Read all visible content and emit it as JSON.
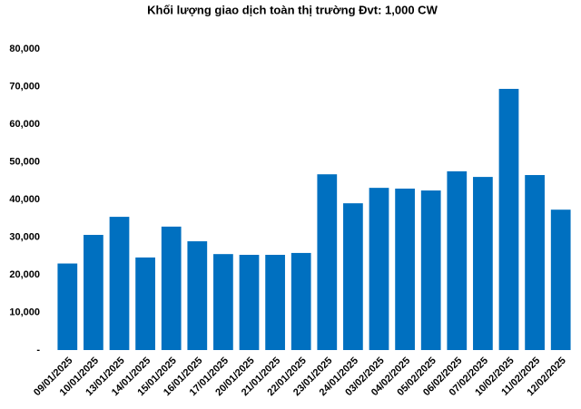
{
  "chart_data": {
    "type": "bar",
    "title": "Khối lượng giao dịch toàn thị trường Đvt: 1,000 CW",
    "categories": [
      "09/01/2025",
      "10/01/2025",
      "13/01/2025",
      "14/01/2025",
      "15/01/2025",
      "16/01/2025",
      "17/01/2025",
      "20/01/2025",
      "21/01/2025",
      "22/01/2025",
      "23/01/2025",
      "24/01/2025",
      "03/02/2025",
      "04/02/2025",
      "05/02/2025",
      "06/02/2025",
      "07/02/2025",
      "10/02/2025",
      "11/02/2025",
      "12/02/2025"
    ],
    "values": [
      23000,
      30600,
      35400,
      24600,
      32800,
      28900,
      25500,
      25300,
      25300,
      25800,
      46700,
      39000,
      43100,
      42900,
      42400,
      47500,
      46000,
      69400,
      46500,
      37300
    ],
    "color": "#0070c0",
    "ylim": [
      0,
      80000
    ],
    "yticks": [
      {
        "value": 0,
        "label": "-"
      },
      {
        "value": 10000,
        "label": "10,000"
      },
      {
        "value": 20000,
        "label": "20,000"
      },
      {
        "value": 30000,
        "label": "30,000"
      },
      {
        "value": 40000,
        "label": "40,000"
      },
      {
        "value": 50000,
        "label": "50,000"
      },
      {
        "value": 60000,
        "label": "60,000"
      },
      {
        "value": 70000,
        "label": "70,000"
      },
      {
        "value": 80000,
        "label": "80,000"
      }
    ],
    "grid": false
  }
}
